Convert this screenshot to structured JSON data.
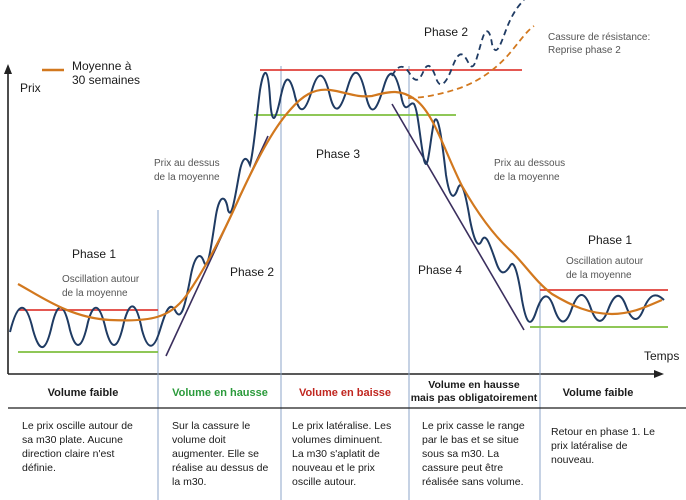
{
  "legend": {
    "label_line1": "Moyenne à",
    "label_line2": "30 semaines",
    "color": "#d2781e"
  },
  "axes": {
    "y_label": "Prix",
    "x_label": "Temps"
  },
  "phases": {
    "p1_left": "Phase 1",
    "p2": "Phase 2",
    "p2_top": "Phase 2",
    "p3": "Phase 3",
    "p4": "Phase 4",
    "p1_right": "Phase 1"
  },
  "annotations": {
    "osc_left_1": "Oscillation autour",
    "osc_left_2": "de la moyenne",
    "above_1": "Prix au dessus",
    "above_2": "de la moyenne",
    "below_1": "Prix au dessous",
    "below_2": "de la moyenne",
    "osc_right_1": "Oscillation autour",
    "osc_right_2": "de la moyenne",
    "break_1": "Cassure de résistance:",
    "break_2": "Reprise phase 2"
  },
  "volume": {
    "v1": "Volume faible",
    "v2": "Volume en hausse",
    "v3": "Volume en baisse",
    "v4_1": "Volume en hausse",
    "v4_2": "mais pas obligatoirement",
    "v5": "Volume faible"
  },
  "descriptions": {
    "d1": "Le prix oscille autour de\nsa m30 plate. Aucune\ndirection claire n'est\ndéfinie.",
    "d2": "Sur la cassure le\nvolume doit\naugmenter. Elle se\nréalise au dessus de\nla m30.",
    "d3": "Le prix latéralise. Les\nvolumes diminuent.\nLa m30 s'aplatit de\nnouveau et le prix\noscille autour.",
    "d4": "Le prix casse le range\npar le bas et se situe\nsous sa m30. La\ncassure peut être\nréalisée sans volume.",
    "d5": "Retour en phase 1. Le\nprix latéralise de\nnouveau."
  },
  "colors": {
    "price": "#1f3b63",
    "average": "#d2781e",
    "resistance": "#e0403a",
    "support": "#7fbf3f",
    "trend": "#3b2f5e",
    "divider": "#8da6c8",
    "vol_hausse": "#2a9a3a",
    "vol_baisse": "#c0261f",
    "dash": "#1f3b63"
  }
}
